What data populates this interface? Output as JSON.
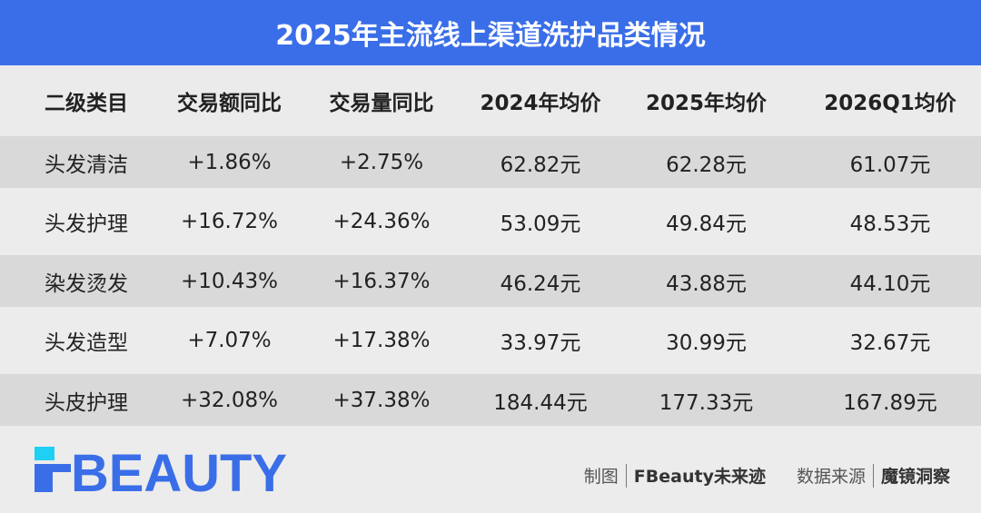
{
  "chart_data": {
    "type": "table",
    "title": "2025年主流线上渠道洗护品类情况",
    "columns": [
      "二级类目",
      "交易额同比",
      "交易量同比",
      "2024年均价",
      "2025年均价",
      "2026Q1均价"
    ],
    "rows": [
      [
        "头发清洁",
        "+1.86%",
        "+2.75%",
        "62.82元",
        "62.28元",
        "61.07元"
      ],
      [
        "头发护理",
        "+16.72%",
        "+24.36%",
        "53.09元",
        "49.84元",
        "48.53元"
      ],
      [
        "染发烫发",
        "+10.43%",
        "+16.37%",
        "46.24元",
        "43.88元",
        "44.10元"
      ],
      [
        "头发造型",
        "+7.07%",
        "+17.38%",
        "33.97元",
        "30.99元",
        "32.67元"
      ],
      [
        "头皮护理",
        "+32.08%",
        "+37.38%",
        "184.44元",
        "177.33元",
        "167.89元"
      ]
    ]
  },
  "footer": {
    "logo": "FBEAUTY",
    "made_label": "制图",
    "made_by": "FBeauty未来迹",
    "source_label": "数据来源",
    "source": "魔镜洞察"
  },
  "colors": {
    "accent": "#3a6ee8",
    "logo_cyan": "#1fd0f5"
  }
}
